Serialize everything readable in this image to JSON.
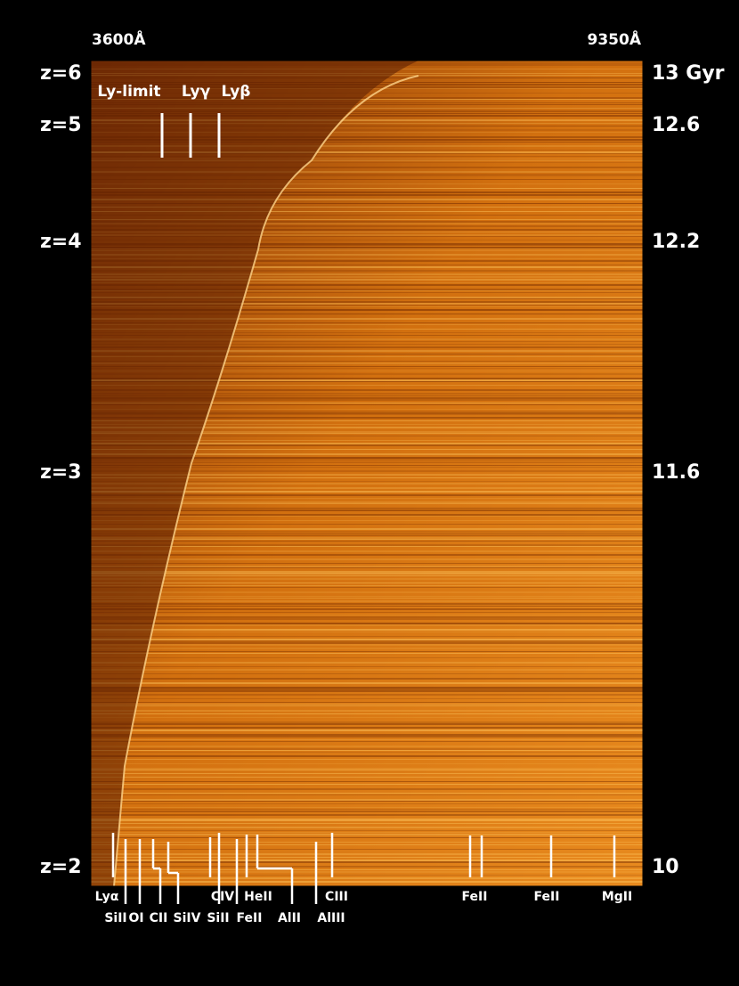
{
  "wavelength_labels": [
    "3600Å",
    "9350Å"
  ],
  "redshift_labels": [
    "z=6",
    "z=5",
    "z=4",
    "z=3",
    "z=2"
  ],
  "age_labels": [
    "13 Gyr",
    "12.6",
    "12.2",
    "11.6",
    "10"
  ],
  "top_lines": [
    "Ly-limit",
    "Lyγ",
    "Lyβ"
  ],
  "bottom_lines_row1": [
    "Lyα",
    "CIV",
    "HeII",
    "CIII",
    "FeII",
    "FeII",
    "MgII"
  ],
  "bottom_lines_row2": [
    "SiII",
    "OI",
    "CII",
    "SiIV",
    "SiII",
    "FeII",
    "AlII",
    "AlIII"
  ]
}
